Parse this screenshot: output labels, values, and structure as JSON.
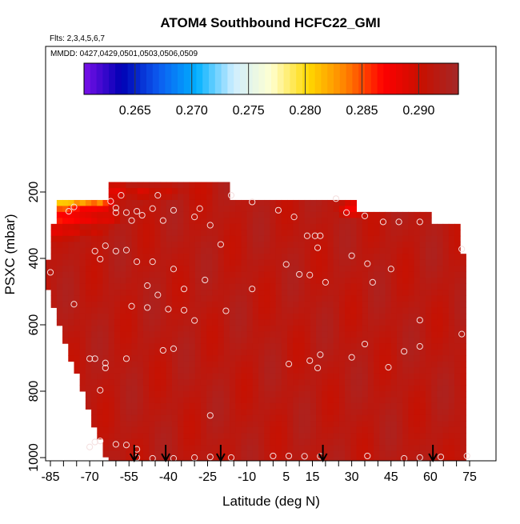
{
  "chart_data": {
    "type": "heatmap",
    "title": "ATOM4 Southbound HCFC22_GMI",
    "subtitle_flights": "Flts: 2,3,4,5,6,7",
    "subtitle_dates": "MMDD: 0427,0429,0501,0503,0506,0509",
    "xlabel": "Latitude (deg N)",
    "ylabel": "PSXC (mbar)",
    "xlim": [
      -87,
      80
    ],
    "ylim": [
      1010,
      100
    ],
    "x_ticks": [
      -85,
      -70,
      -55,
      -40,
      -25,
      -10,
      5,
      15,
      30,
      45,
      60,
      75
    ],
    "x_ticklabels": [
      "-85",
      "-70",
      "-55",
      "-40",
      "-25",
      "-10",
      "5",
      "15",
      "30",
      "45",
      "60",
      "75"
    ],
    "x_minor_ticks": [
      -80,
      -75,
      -65,
      -60,
      -50,
      -45,
      -35,
      -30,
      -20,
      -15,
      -5,
      0,
      10,
      20,
      25,
      35,
      40,
      50,
      55,
      65,
      70
    ],
    "y_ticks": [
      200,
      400,
      600,
      800,
      1000
    ],
    "y_ticklabels": [
      "200",
      "400",
      "600",
      "800",
      "1000"
    ],
    "colorbar": {
      "range": [
        0.2605,
        0.2935
      ],
      "ticks": [
        0.265,
        0.27,
        0.275,
        0.28,
        0.285,
        0.29
      ],
      "ticklabels": [
        "0.265",
        "0.270",
        "0.275",
        "0.280",
        "0.285",
        "0.290"
      ],
      "colors": [
        "#7a10e8",
        "#0000b4",
        "#0c5cf0",
        "#00b0ff",
        "#cfeeff",
        "#ffffd0",
        "#ffd800",
        "#ff8000",
        "#ff0000",
        "#c81000",
        "#a42828"
      ]
    },
    "field": {
      "base_value": 0.2915,
      "low_value_cells": [
        {
          "lat": -82,
          "p": 235,
          "v": 0.2805
        },
        {
          "lat": -78,
          "p": 235,
          "v": 0.28
        },
        {
          "lat": -72,
          "p": 235,
          "v": 0.281
        },
        {
          "lat": -66,
          "p": 235,
          "v": 0.2825
        },
        {
          "lat": -82,
          "p": 280,
          "v": 0.285
        },
        {
          "lat": -76,
          "p": 280,
          "v": 0.2855
        },
        {
          "lat": -70,
          "p": 280,
          "v": 0.2865
        },
        {
          "lat": -63,
          "p": 280,
          "v": 0.288
        },
        {
          "lat": -83,
          "p": 320,
          "v": 0.288
        },
        {
          "lat": -76,
          "p": 320,
          "v": 0.2885
        },
        {
          "lat": -68,
          "p": 320,
          "v": 0.2895
        },
        {
          "lat": -60,
          "p": 200,
          "v": 0.288
        },
        {
          "lat": -50,
          "p": 200,
          "v": 0.2885
        },
        {
          "lat": -40,
          "p": 200,
          "v": 0.2895
        },
        {
          "lat": -28,
          "p": 200,
          "v": 0.29
        },
        {
          "lat": 30,
          "p": 255,
          "v": 0.286
        },
        {
          "lat": 32,
          "p": 235,
          "v": 0.288
        }
      ]
    },
    "observations": [
      {
        "lat": -58,
        "p": 210
      },
      {
        "lat": -44,
        "p": 210
      },
      {
        "lat": -16,
        "p": 210
      },
      {
        "lat": -62,
        "p": 228
      },
      {
        "lat": -60,
        "p": 248
      },
      {
        "lat": -60,
        "p": 262
      },
      {
        "lat": -56,
        "p": 262
      },
      {
        "lat": -52,
        "p": 258
      },
      {
        "lat": -46,
        "p": 250
      },
      {
        "lat": -38,
        "p": 255
      },
      {
        "lat": -28,
        "p": 250
      },
      {
        "lat": -50,
        "p": 270
      },
      {
        "lat": -54,
        "p": 286
      },
      {
        "lat": -42,
        "p": 286
      },
      {
        "lat": -30,
        "p": 275
      },
      {
        "lat": -24,
        "p": 300
      },
      {
        "lat": -8,
        "p": 230
      },
      {
        "lat": 2,
        "p": 255
      },
      {
        "lat": 8,
        "p": 275
      },
      {
        "lat": 24,
        "p": 220
      },
      {
        "lat": 28,
        "p": 262
      },
      {
        "lat": 35,
        "p": 272
      },
      {
        "lat": 42,
        "p": 290
      },
      {
        "lat": 48,
        "p": 290
      },
      {
        "lat": 56,
        "p": 290
      },
      {
        "lat": 13,
        "p": 332
      },
      {
        "lat": 16,
        "p": 332
      },
      {
        "lat": 18,
        "p": 332
      },
      {
        "lat": -76,
        "p": 245
      },
      {
        "lat": -78,
        "p": 258
      },
      {
        "lat": -64,
        "p": 362
      },
      {
        "lat": -68,
        "p": 378
      },
      {
        "lat": -60,
        "p": 378
      },
      {
        "lat": -56,
        "p": 375
      },
      {
        "lat": -66,
        "p": 402
      },
      {
        "lat": -52,
        "p": 410
      },
      {
        "lat": -46,
        "p": 410
      },
      {
        "lat": -20,
        "p": 358
      },
      {
        "lat": -38,
        "p": 432
      },
      {
        "lat": 30,
        "p": 392
      },
      {
        "lat": 17,
        "p": 368
      },
      {
        "lat": 5,
        "p": 418
      },
      {
        "lat": 36,
        "p": 416
      },
      {
        "lat": 45,
        "p": 432
      },
      {
        "lat": 72,
        "p": 372
      },
      {
        "lat": -48,
        "p": 482
      },
      {
        "lat": -44,
        "p": 510
      },
      {
        "lat": -26,
        "p": 465
      },
      {
        "lat": -34,
        "p": 492
      },
      {
        "lat": -8,
        "p": 492
      },
      {
        "lat": 10,
        "p": 448
      },
      {
        "lat": 14,
        "p": 450
      },
      {
        "lat": 20,
        "p": 472
      },
      {
        "lat": 38,
        "p": 472
      },
      {
        "lat": -85,
        "p": 442
      },
      {
        "lat": -76,
        "p": 538
      },
      {
        "lat": -54,
        "p": 544
      },
      {
        "lat": -48,
        "p": 548
      },
      {
        "lat": -40,
        "p": 553
      },
      {
        "lat": -34,
        "p": 556
      },
      {
        "lat": -18,
        "p": 558
      },
      {
        "lat": -30,
        "p": 587
      },
      {
        "lat": 56,
        "p": 586
      },
      {
        "lat": -70,
        "p": 702
      },
      {
        "lat": -68,
        "p": 702
      },
      {
        "lat": -64,
        "p": 715
      },
      {
        "lat": -64,
        "p": 730
      },
      {
        "lat": -56,
        "p": 702
      },
      {
        "lat": -42,
        "p": 677
      },
      {
        "lat": -38,
        "p": 672
      },
      {
        "lat": 35,
        "p": 658
      },
      {
        "lat": 30,
        "p": 698
      },
      {
        "lat": 18,
        "p": 690
      },
      {
        "lat": 14,
        "p": 708
      },
      {
        "lat": 6,
        "p": 718
      },
      {
        "lat": 17,
        "p": 730
      },
      {
        "lat": 44,
        "p": 728
      },
      {
        "lat": 50,
        "p": 680
      },
      {
        "lat": 56,
        "p": 665
      },
      {
        "lat": 72,
        "p": 628
      },
      {
        "lat": -66,
        "p": 797
      },
      {
        "lat": -24,
        "p": 873
      },
      {
        "lat": -70,
        "p": 968
      },
      {
        "lat": -68,
        "p": 953
      },
      {
        "lat": -66,
        "p": 950
      },
      {
        "lat": -60,
        "p": 960
      },
      {
        "lat": -56,
        "p": 962
      },
      {
        "lat": -52,
        "p": 975
      },
      {
        "lat": -52,
        "p": 1000
      },
      {
        "lat": -46,
        "p": 1003
      },
      {
        "lat": -38,
        "p": 1003
      },
      {
        "lat": -30,
        "p": 1000
      },
      {
        "lat": -24,
        "p": 998
      },
      {
        "lat": -16,
        "p": 1000
      },
      {
        "lat": 0,
        "p": 995
      },
      {
        "lat": 6,
        "p": 995
      },
      {
        "lat": 12,
        "p": 996
      },
      {
        "lat": 18,
        "p": 996
      },
      {
        "lat": 36,
        "p": 995
      },
      {
        "lat": 50,
        "p": 1003
      },
      {
        "lat": 56,
        "p": 1000
      },
      {
        "lat": 64,
        "p": 998
      },
      {
        "lat": 74,
        "p": 995
      }
    ],
    "markers_x": [
      -53,
      -41,
      -20,
      19,
      61
    ]
  }
}
